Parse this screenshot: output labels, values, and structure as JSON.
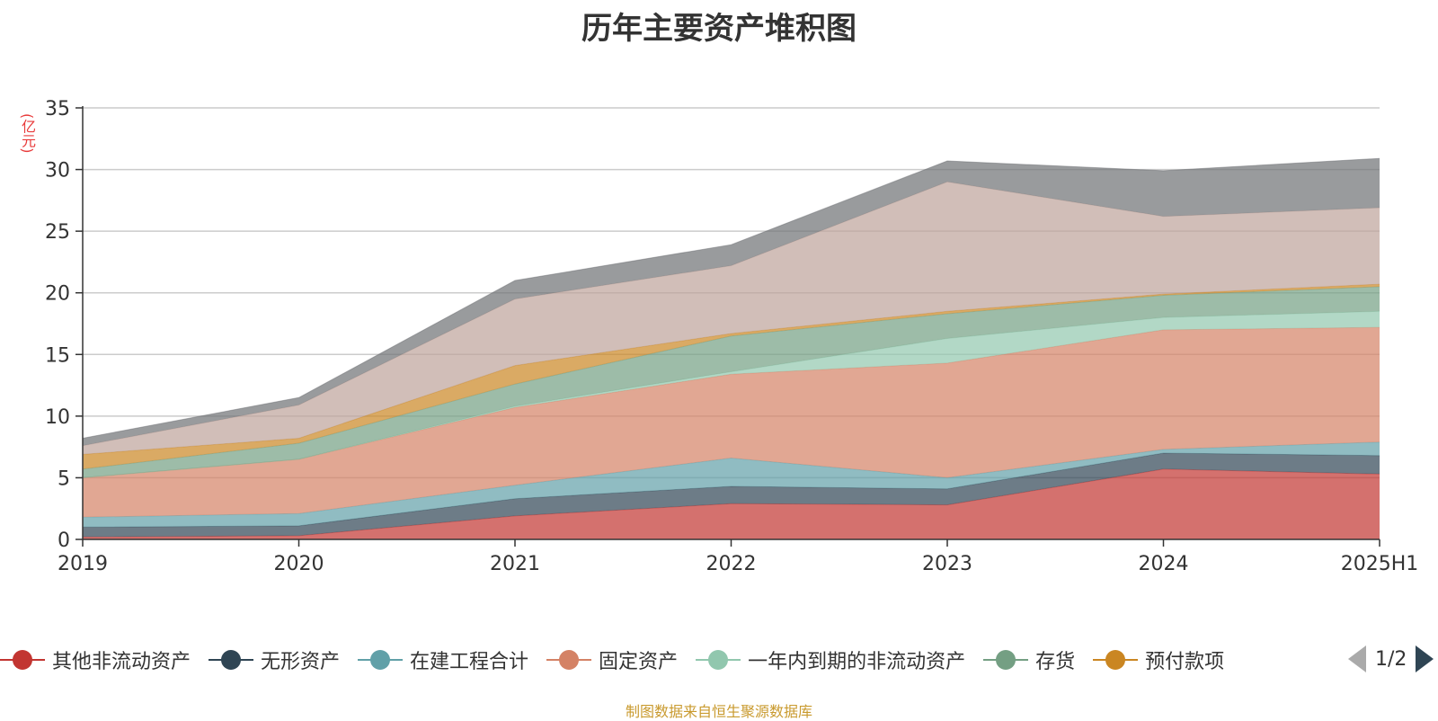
{
  "page": {
    "title": "历年主要资产堆积图",
    "source": "制图数据来自恒生聚源数据库"
  },
  "chart_data": {
    "type": "area",
    "stacked": true,
    "title": "历年主要资产堆积图",
    "unit": "(亿元)",
    "x": [
      "2019",
      "2020",
      "2021",
      "2022",
      "2023",
      "2024",
      "2025H1"
    ],
    "ylim": [
      0,
      35
    ],
    "yticks": [
      0,
      5,
      10,
      15,
      20,
      25,
      30,
      35
    ],
    "grid": true,
    "legend_position": "bottom",
    "series": [
      {
        "name": "其他非流动资产",
        "color": "#c23531",
        "values": [
          0.2,
          0.3,
          1.9,
          2.9,
          2.8,
          5.7,
          5.3
        ]
      },
      {
        "name": "无形资产",
        "color": "#2f4554",
        "values": [
          0.8,
          0.8,
          1.4,
          1.4,
          1.3,
          1.3,
          1.5
        ]
      },
      {
        "name": "在建工程合计",
        "color": "#61a0a8",
        "values": [
          0.8,
          1.0,
          1.1,
          2.3,
          0.9,
          0.3,
          1.1
        ]
      },
      {
        "name": "固定资产",
        "color": "#d48265",
        "values": [
          3.2,
          4.4,
          6.3,
          6.8,
          9.3,
          9.7,
          9.3
        ]
      },
      {
        "name": "一年内到期的非流动资产",
        "color": "#91c7ae",
        "values": [
          0.0,
          0.0,
          0.1,
          0.2,
          2.0,
          1.0,
          1.3
        ]
      },
      {
        "name": "存货",
        "color": "#749f83",
        "values": [
          0.7,
          1.3,
          1.8,
          2.9,
          2.0,
          1.8,
          2.0
        ]
      },
      {
        "name": "预付款项",
        "color": "#ca8622",
        "values": [
          1.2,
          0.4,
          1.5,
          0.2,
          0.2,
          0.1,
          0.2
        ]
      },
      {
        "color": "#bda29a",
        "values": [
          0.7,
          2.7,
          5.4,
          5.5,
          10.5,
          6.3,
          6.2
        ]
      },
      {
        "color": "#6e7074",
        "values": [
          0.6,
          0.6,
          1.5,
          1.7,
          1.7,
          3.7,
          4.0
        ]
      }
    ],
    "legend_pager": {
      "prev_icon": "triangle-left-icon",
      "next_icon": "triangle-right-icon",
      "text": "1/2"
    }
  }
}
